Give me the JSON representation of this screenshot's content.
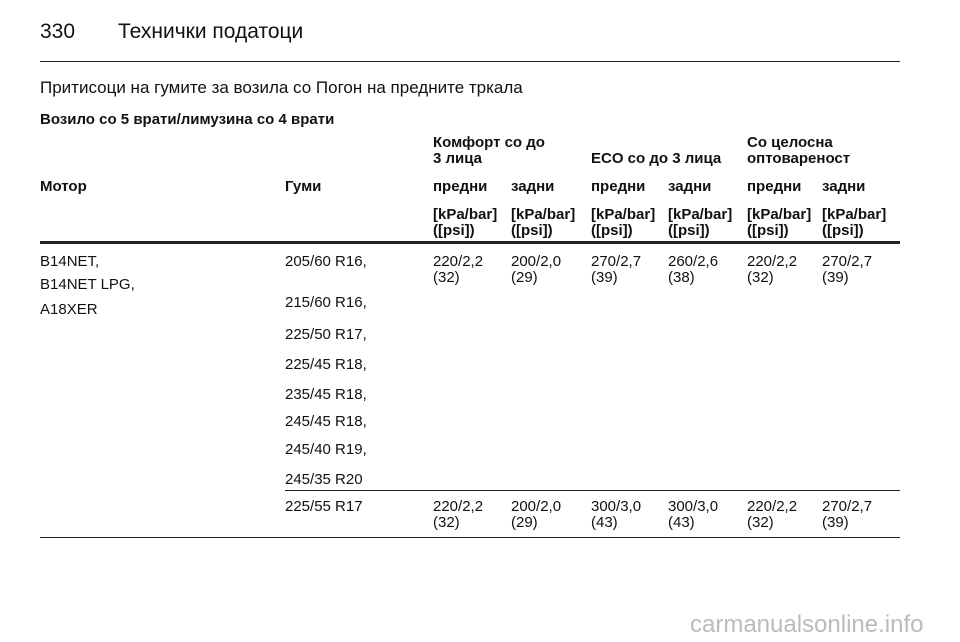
{
  "header": {
    "page_number": "330",
    "title": "Технички податоци"
  },
  "section_title": "Притисоци на гумите за возила со Погон на предните тркала",
  "subtitle": "Возило со 5 врати/лимузина со 4 врати",
  "table": {
    "groups": [
      [
        "Комфорт со до",
        "3 лица"
      ],
      [
        "ECO со до 3 лица"
      ],
      [
        "Со целосна",
        "оптовареност"
      ]
    ],
    "columns": [
      "Мотор",
      "Гуми",
      "предни",
      "задни",
      "предни",
      "задни",
      "предни",
      "задни"
    ],
    "units": [
      [
        "[kPa/bar]",
        "([psi])"
      ],
      [
        "[kPa/bar]",
        "([psi])"
      ],
      [
        "[kPa/bar]",
        "([psi])"
      ],
      [
        "[kPa/bar]",
        "([psi])"
      ],
      [
        "[kPa/bar]",
        "([psi])"
      ],
      [
        "[kPa/bar]",
        "([psi])"
      ]
    ],
    "rows": [
      {
        "engines": [
          "B14NET,",
          "B14NET LPG,",
          "A18XER"
        ],
        "tyres": [
          "205/60 R16,",
          "215/60 R16,",
          "225/50 R17,",
          "225/45 R18,",
          "235/45 R18,",
          "245/45 R18,",
          "245/40 R19,",
          "245/35 R20"
        ],
        "pressures": [
          [
            "220/2,2",
            "(32)"
          ],
          [
            "200/2,0",
            "(29)"
          ],
          [
            "270/2,7",
            "(39)"
          ],
          [
            "260/2,6",
            "(38)"
          ],
          [
            "220/2,2",
            "(32)"
          ],
          [
            "270/2,7",
            "(39)"
          ]
        ]
      },
      {
        "engines": [],
        "tyres": [
          "225/55 R17"
        ],
        "pressures": [
          [
            "220/2,2",
            "(32)"
          ],
          [
            "200/2,0",
            "(29)"
          ],
          [
            "300/3,0",
            "(43)"
          ],
          [
            "300/3,0",
            "(43)"
          ],
          [
            "220/2,2",
            "(32)"
          ],
          [
            "270/2,7",
            "(39)"
          ]
        ]
      }
    ]
  },
  "watermark": "carmanualsonline.info"
}
